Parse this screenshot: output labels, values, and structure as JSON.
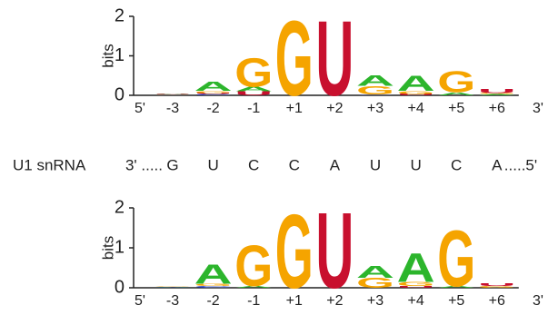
{
  "chart_data": [
    {
      "type": "logo",
      "ylabel": "bits",
      "ylim": [
        0,
        2
      ],
      "yticks": [
        0,
        1,
        2
      ],
      "start_label": "5'",
      "end_label": "3'",
      "categories": [
        "-3",
        "-2",
        "-1",
        "+1",
        "+2",
        "+3",
        "+4",
        "+5",
        "+6"
      ],
      "series": [
        {
          "name": "A",
          "color": "#2cb52c",
          "values": [
            0.02,
            0.25,
            0.12,
            0,
            0,
            0.28,
            0.4,
            0.08,
            0.03
          ]
        },
        {
          "name": "C",
          "color": "#1f3fcc",
          "values": [
            0.01,
            0.03,
            0,
            0,
            0,
            0.02,
            0,
            0,
            0
          ]
        },
        {
          "name": "G",
          "color": "#f5a400",
          "values": [
            0.01,
            0.05,
            0.75,
            1.95,
            0,
            0.22,
            0.08,
            0.55,
            0.03
          ]
        },
        {
          "name": "U",
          "color": "#c8102e",
          "values": [
            0.01,
            0.03,
            0.1,
            0,
            1.95,
            0,
            0.04,
            0,
            0.1
          ]
        }
      ]
    },
    {
      "type": "logo",
      "ylabel": "bits",
      "ylim": [
        0,
        2
      ],
      "yticks": [
        0,
        1,
        2
      ],
      "start_label": "5'",
      "end_label": "3'",
      "categories": [
        "-3",
        "-2",
        "-1",
        "+1",
        "+2",
        "+3",
        "+4",
        "+5",
        "+6"
      ],
      "series": [
        {
          "name": "A",
          "color": "#2cb52c",
          "values": [
            0.01,
            0.5,
            0.05,
            0,
            0,
            0.3,
            0.75,
            0.04,
            0
          ]
        },
        {
          "name": "C",
          "color": "#1f3fcc",
          "values": [
            0.01,
            0.04,
            0,
            0,
            0,
            0,
            0,
            0,
            0
          ]
        },
        {
          "name": "G",
          "color": "#f5a400",
          "values": [
            0.01,
            0.06,
            1.05,
            1.9,
            0,
            0.25,
            0.1,
            1.45,
            0.04
          ]
        },
        {
          "name": "U",
          "color": "#c8102e",
          "values": [
            0,
            0,
            0,
            0,
            1.95,
            0,
            0.05,
            0,
            0.08
          ]
        }
      ]
    }
  ],
  "u1_snrna": {
    "label": "U1 snRNA",
    "prefix": "3' .....",
    "bases": [
      "G",
      "U",
      "C",
      "C",
      "A",
      "U",
      "U",
      "C",
      "A"
    ],
    "suffix": ".....5'"
  }
}
